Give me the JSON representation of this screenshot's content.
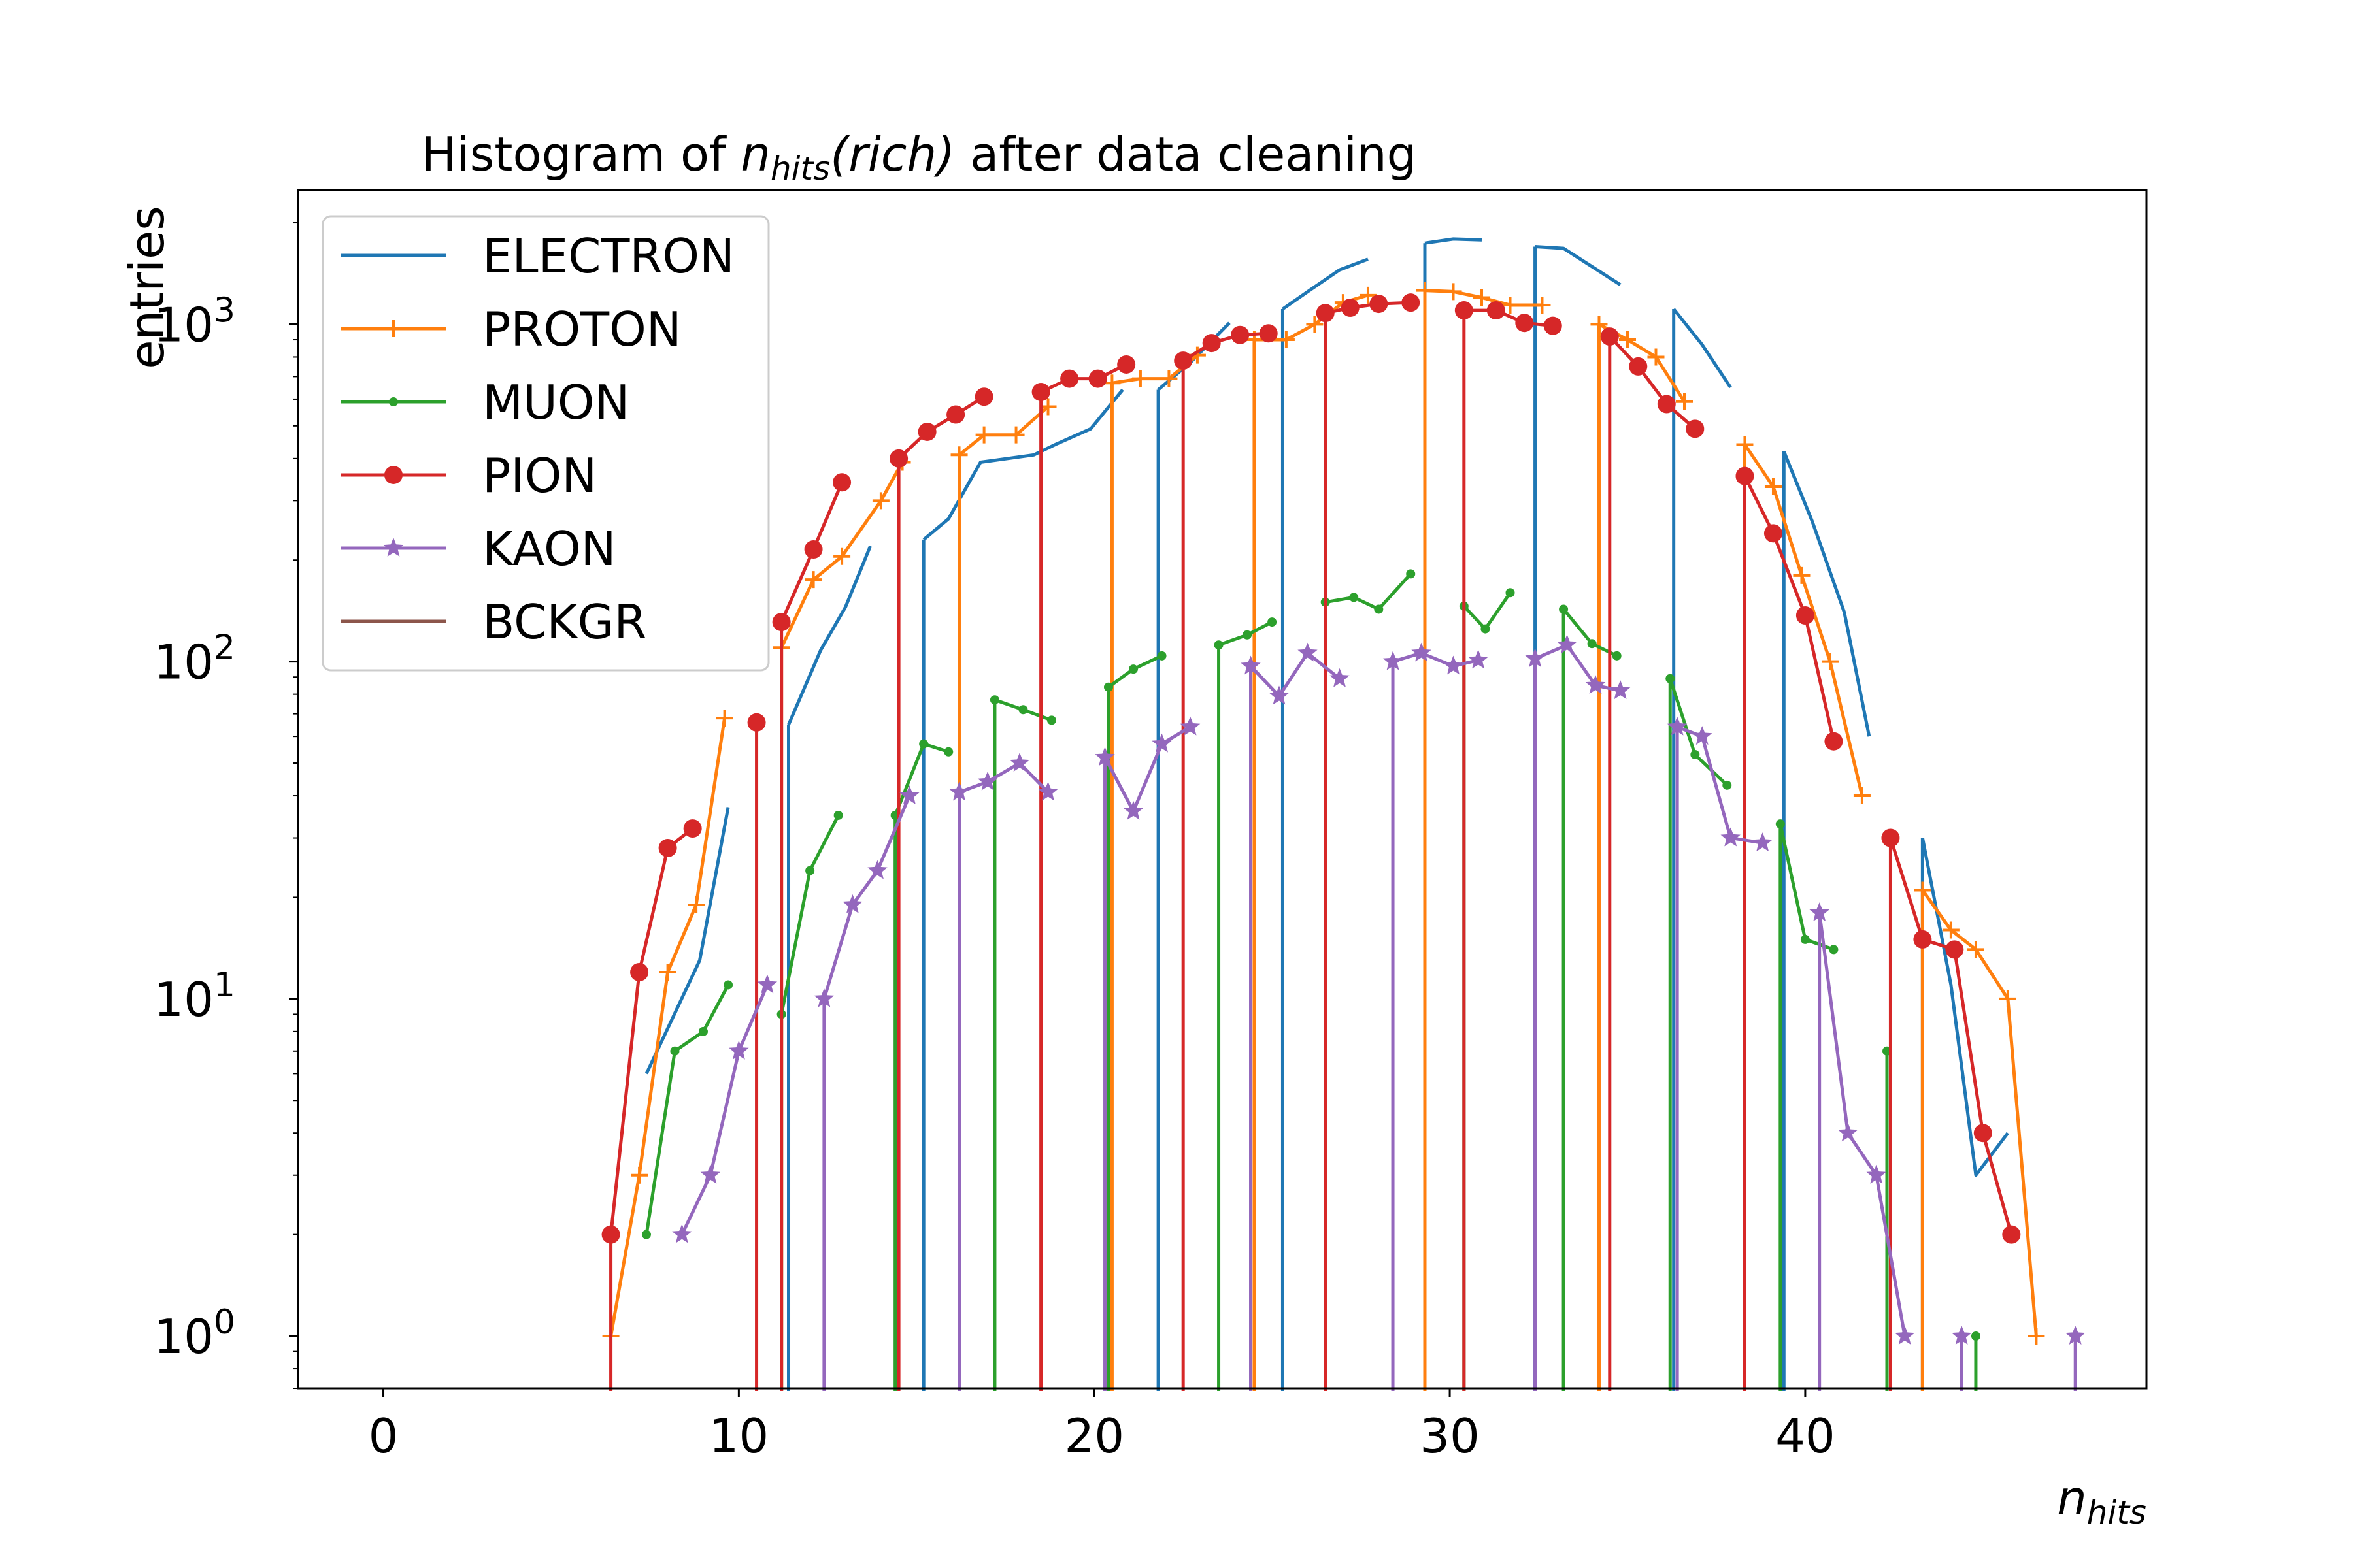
{
  "chart_data": {
    "type": "line",
    "title": {
      "prefix": "Histogram of ",
      "var": "n",
      "sub": "hits",
      "arg": "(rich)",
      "suffix": " after data cleaning"
    },
    "xlabel": {
      "var": "n",
      "sub": "hits"
    },
    "ylabel": "entries",
    "xlim": [
      -2.4,
      49.6
    ],
    "ylim": [
      0.7,
      2500
    ],
    "yscale": "log",
    "grid": false,
    "legend_position": "upper-left",
    "x_ticks": [
      0,
      10,
      20,
      30,
      40
    ],
    "y_ticks": [
      {
        "value": 1,
        "base": "10",
        "exp": "0"
      },
      {
        "value": 10,
        "base": "10",
        "exp": "1"
      },
      {
        "value": 100,
        "base": "10",
        "exp": "2"
      },
      {
        "value": 1000,
        "base": "10",
        "exp": "3"
      }
    ],
    "series": [
      {
        "name": "ELECTRON",
        "color": "#1f77b4",
        "marker": "none",
        "segments": [
          [
            [
              7.4,
              6
            ],
            [
              8.9,
              13
            ],
            [
              9.7,
              37
            ]
          ],
          [
            [
              11.4,
              65
            ],
            [
              12.3,
              108
            ],
            [
              13.0,
              145
            ],
            [
              13.7,
              220
            ]
          ],
          [
            [
              15.2,
              230
            ],
            [
              15.9,
              265
            ],
            [
              16.8,
              390
            ],
            [
              18.3,
              410
            ],
            [
              18.9,
              440
            ],
            [
              19.9,
              490
            ],
            [
              20.8,
              640
            ]
          ],
          [
            [
              21.8,
              640
            ],
            [
              22.7,
              770
            ],
            [
              23.8,
              1010
            ]
          ],
          [
            [
              25.3,
              1110
            ],
            [
              26.1,
              1270
            ],
            [
              26.9,
              1450
            ],
            [
              27.7,
              1560
            ]
          ],
          [
            [
              29.3,
              1740
            ],
            [
              30.1,
              1790
            ],
            [
              30.9,
              1780
            ]
          ],
          [
            [
              32.4,
              1700
            ],
            [
              33.2,
              1680
            ],
            [
              34.8,
              1310
            ]
          ],
          [
            [
              36.3,
              1110
            ],
            [
              37.1,
              870
            ],
            [
              37.9,
              650
            ]
          ],
          [
            [
              39.4,
              420
            ],
            [
              40.2,
              260
            ],
            [
              41.1,
              140
            ],
            [
              41.8,
              60
            ]
          ],
          [
            [
              43.3,
              30
            ],
            [
              44.1,
              11
            ],
            [
              44.8,
              3
            ],
            [
              45.7,
              4
            ]
          ]
        ]
      },
      {
        "name": "PROTON",
        "color": "#ff7f0e",
        "marker": "plus",
        "segments": [
          [
            [
              6.4,
              1
            ],
            [
              7.2,
              3
            ],
            [
              8.0,
              12
            ],
            [
              8.8,
              19
            ],
            [
              9.6,
              68
            ]
          ],
          [
            [
              11.2,
              110
            ],
            [
              12.1,
              175
            ],
            [
              12.9,
              205
            ],
            [
              14.0,
              300
            ],
            [
              14.6,
              390
            ]
          ],
          [
            [
              16.2,
              410
            ],
            [
              16.9,
              470
            ],
            [
              17.8,
              470
            ],
            [
              18.7,
              570
            ]
          ],
          [
            [
              20.5,
              670
            ],
            [
              21.3,
              690
            ],
            [
              22.1,
              690
            ],
            [
              22.9,
              810
            ]
          ],
          [
            [
              24.5,
              900
            ],
            [
              25.4,
              900
            ],
            [
              26.2,
              1000
            ],
            [
              27.0,
              1160
            ],
            [
              27.7,
              1220
            ]
          ],
          [
            [
              29.3,
              1260
            ],
            [
              30.1,
              1250
            ],
            [
              30.9,
              1200
            ],
            [
              31.7,
              1140
            ],
            [
              32.6,
              1140
            ]
          ],
          [
            [
              34.2,
              1000
            ],
            [
              35.0,
              900
            ],
            [
              35.8,
              800
            ],
            [
              36.6,
              590
            ]
          ],
          [
            [
              38.3,
              440
            ],
            [
              39.1,
              330
            ],
            [
              39.9,
              180
            ],
            [
              40.7,
              100
            ],
            [
              41.6,
              40
            ]
          ],
          [
            [
              43.3,
              21
            ],
            [
              44.1,
              16
            ],
            [
              44.8,
              14
            ],
            [
              45.7,
              10
            ],
            [
              46.5,
              1
            ]
          ]
        ]
      },
      {
        "name": "MUON",
        "color": "#2ca02c",
        "marker": "dot",
        "segments": [
          [
            [
              7.4,
              2
            ],
            [
              8.2,
              7
            ],
            [
              9.0,
              8
            ],
            [
              9.7,
              11
            ]
          ],
          [
            [
              11.2,
              9
            ],
            [
              12.0,
              24
            ],
            [
              12.8,
              35
            ]
          ],
          [
            [
              14.4,
              35
            ],
            [
              15.2,
              57
            ],
            [
              15.9,
              54
            ]
          ],
          [
            [
              17.2,
              77
            ],
            [
              18.0,
              72
            ],
            [
              18.8,
              67
            ]
          ],
          [
            [
              20.4,
              84
            ],
            [
              21.1,
              95
            ],
            [
              21.9,
              104
            ]
          ],
          [
            [
              23.5,
              112
            ],
            [
              24.3,
              120
            ],
            [
              25.0,
              131
            ]
          ],
          [
            [
              26.5,
              150
            ],
            [
              27.3,
              155
            ],
            [
              28.0,
              143
            ],
            [
              28.9,
              182
            ]
          ],
          [
            [
              30.4,
              146
            ],
            [
              31.0,
              125
            ],
            [
              31.7,
              160
            ]
          ],
          [
            [
              33.2,
              143
            ],
            [
              34.0,
              113
            ],
            [
              34.7,
              104
            ]
          ],
          [
            [
              36.2,
              89
            ],
            [
              36.9,
              53
            ],
            [
              37.8,
              43
            ]
          ],
          [
            [
              39.3,
              33
            ],
            [
              40.0,
              15
            ],
            [
              40.8,
              14
            ]
          ],
          [
            [
              42.3,
              7
            ]
          ],
          [
            [
              44.8,
              1
            ]
          ]
        ]
      },
      {
        "name": "PION",
        "color": "#d62728",
        "marker": "big-dot",
        "segments": [
          [
            [
              6.4,
              2
            ],
            [
              7.2,
              12
            ],
            [
              8.0,
              28
            ],
            [
              8.7,
              32
            ]
          ],
          [
            [
              10.5,
              66
            ]
          ],
          [
            [
              11.2,
              131
            ],
            [
              12.1,
              215
            ],
            [
              12.9,
              340
            ]
          ],
          [
            [
              14.5,
              400
            ],
            [
              15.3,
              480
            ],
            [
              16.1,
              540
            ],
            [
              16.9,
              610
            ]
          ],
          [
            [
              18.5,
              630
            ],
            [
              19.3,
              690
            ],
            [
              20.1,
              690
            ],
            [
              20.9,
              760
            ]
          ],
          [
            [
              22.5,
              780
            ],
            [
              23.3,
              880
            ],
            [
              24.1,
              930
            ],
            [
              24.9,
              940
            ]
          ],
          [
            [
              26.5,
              1080
            ],
            [
              27.2,
              1120
            ],
            [
              28.0,
              1150
            ],
            [
              28.9,
              1160
            ]
          ],
          [
            [
              30.4,
              1100
            ],
            [
              31.3,
              1100
            ],
            [
              32.1,
              1010
            ],
            [
              32.9,
              990
            ]
          ],
          [
            [
              34.5,
              920
            ],
            [
              35.3,
              750
            ],
            [
              36.1,
              580
            ],
            [
              36.9,
              490
            ]
          ],
          [
            [
              38.3,
              355
            ],
            [
              39.1,
              240
            ],
            [
              40.0,
              137
            ],
            [
              40.8,
              58
            ]
          ],
          [
            [
              42.4,
              30
            ],
            [
              43.3,
              15
            ],
            [
              44.2,
              14
            ],
            [
              45.0,
              4
            ],
            [
              45.8,
              2
            ]
          ]
        ]
      },
      {
        "name": "KAON",
        "color": "#9467bd",
        "marker": "star",
        "segments": [
          [
            [
              8.4,
              2
            ],
            [
              9.2,
              3
            ],
            [
              10.0,
              7
            ],
            [
              10.8,
              11
            ]
          ],
          [
            [
              12.4,
              10
            ],
            [
              13.2,
              19
            ],
            [
              13.9,
              24
            ],
            [
              14.8,
              40
            ]
          ],
          [
            [
              16.2,
              41
            ],
            [
              17.0,
              44
            ],
            [
              17.9,
              50
            ],
            [
              18.7,
              41
            ]
          ],
          [
            [
              20.3,
              52
            ],
            [
              21.1,
              36
            ],
            [
              21.9,
              57
            ],
            [
              22.7,
              64
            ]
          ],
          [
            [
              24.4,
              97
            ],
            [
              25.2,
              79
            ],
            [
              26.0,
              106
            ],
            [
              26.9,
              89
            ]
          ],
          [
            [
              28.4,
              100
            ],
            [
              29.2,
              106
            ],
            [
              30.1,
              97
            ],
            [
              30.8,
              101
            ]
          ],
          [
            [
              32.4,
              102
            ],
            [
              33.3,
              112
            ],
            [
              34.1,
              85
            ],
            [
              34.8,
              82
            ]
          ],
          [
            [
              36.4,
              64
            ],
            [
              37.1,
              60
            ],
            [
              37.9,
              30
            ],
            [
              38.8,
              29
            ]
          ],
          [
            [
              40.4,
              18
            ],
            [
              41.2,
              4
            ],
            [
              42.0,
              3
            ],
            [
              42.8,
              1
            ]
          ],
          [
            [
              44.4,
              1
            ]
          ],
          [
            [
              47.6,
              1
            ]
          ]
        ]
      },
      {
        "name": "BCKGR",
        "color": "#8c564b",
        "marker": "none",
        "segments": []
      }
    ]
  }
}
